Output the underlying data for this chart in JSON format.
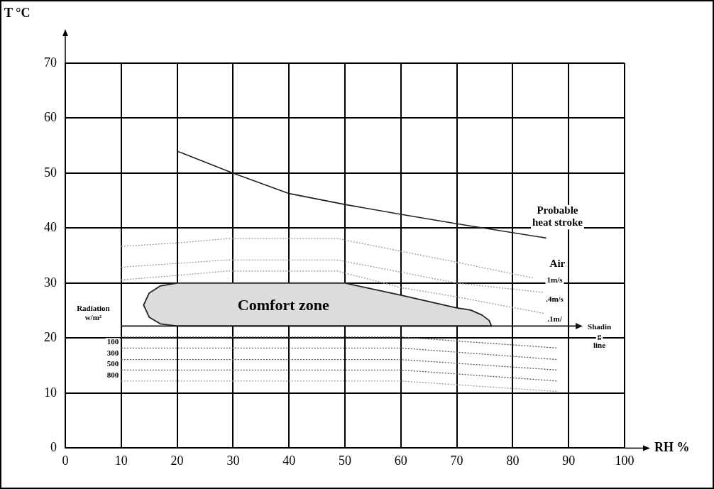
{
  "chart_data": {
    "type": "line",
    "xlabel": "RH %",
    "ylabel": "T °C",
    "xlim": [
      0,
      100
    ],
    "ylim": [
      0,
      70
    ],
    "xticks": [
      0,
      10,
      20,
      30,
      40,
      50,
      60,
      70,
      80,
      90,
      100
    ],
    "yticks": [
      0,
      10,
      20,
      30,
      40,
      50,
      60,
      70
    ],
    "grid": true,
    "legend": false,
    "series": [
      {
        "color": "#222222",
        "line_style": "solid",
        "x": [
          20,
          30,
          40,
          50,
          60,
          70,
          86
        ],
        "values": [
          54,
          50,
          46.3,
          44.3,
          42.5,
          40.8,
          38.2
        ]
      },
      {
        "type": "line",
        "color": "#999999",
        "line_style": "dotted",
        "x": [
          10,
          20,
          29,
          48.7,
          60,
          70,
          83.8
        ],
        "values": [
          36.7,
          37.3,
          38.1,
          38.1,
          35.8,
          33.8,
          30.9
        ]
      },
      {
        "type": "line",
        "color": "#999999",
        "line_style": "dotted",
        "x": [
          10,
          20,
          29,
          48.7,
          60,
          70,
          85.6
        ],
        "values": [
          32.9,
          33.6,
          34.2,
          34.2,
          32,
          30,
          28.3
        ]
      },
      {
        "type": "line",
        "color": "#999999",
        "line_style": "dotted",
        "x": [
          10,
          20,
          29,
          48.7,
          60,
          70,
          85.6
        ],
        "values": [
          30.6,
          31.4,
          32.2,
          32.2,
          29.2,
          27.5,
          24.5
        ]
      },
      {
        "color": "#111111",
        "line_style": "solid",
        "x": [
          10,
          91.5
        ],
        "values": [
          22.2,
          22.2
        ]
      },
      {
        "type": "line",
        "color": "#555555",
        "line_style": "dotted",
        "x": [
          10,
          60,
          88
        ],
        "values": [
          20.2,
          20.2,
          18.2
        ]
      },
      {
        "type": "line",
        "color": "#555555",
        "line_style": "dotted",
        "x": [
          10,
          60,
          88
        ],
        "values": [
          18.2,
          18.2,
          16.1
        ]
      },
      {
        "type": "line",
        "color": "#555555",
        "line_style": "dotted",
        "x": [
          10,
          60,
          88
        ],
        "values": [
          16.1,
          16.1,
          14.2
        ]
      },
      {
        "type": "line",
        "color": "#555555",
        "line_style": "dotted",
        "x": [
          10,
          60,
          88
        ],
        "values": [
          14.2,
          14.2,
          12.2
        ]
      },
      {
        "type": "line",
        "color": "#999999",
        "line_style": "dotted",
        "x": [
          10,
          60,
          88
        ],
        "values": [
          12.2,
          12.2,
          10.3
        ]
      },
      {
        "type": "area",
        "color": "#dcdcdc",
        "line_style": "solid",
        "x": [
          20,
          50,
          60,
          70,
          72.5,
          74.5,
          75.8,
          76.2,
          20,
          17,
          15,
          14,
          15,
          17,
          20
        ],
        "values": [
          30,
          30,
          27.8,
          25.5,
          25.1,
          24.2,
          23.2,
          22.2,
          22.2,
          22.6,
          23.8,
          26,
          28.2,
          29.5,
          30
        ]
      }
    ],
    "annotations": [
      "Comfort zone",
      "Probable\nheat stroke",
      "Air",
      "1m/s",
      ".4m/s",
      ".1m/",
      "Shadin\ng\nline",
      "Radiation\nw/m²",
      "100",
      "300",
      "500",
      "800"
    ]
  }
}
